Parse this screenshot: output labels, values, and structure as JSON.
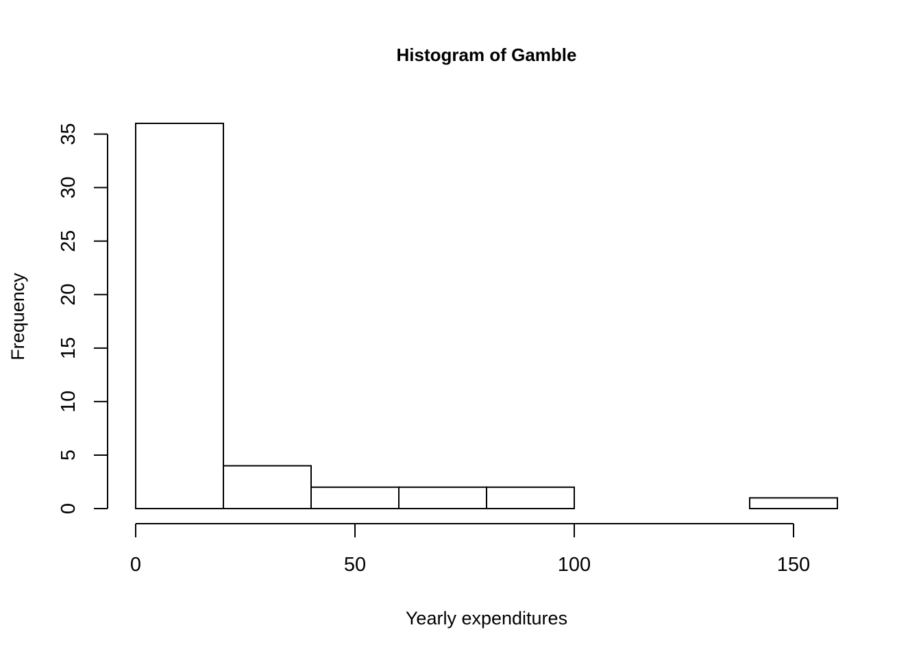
{
  "chart_data": {
    "type": "bar",
    "subtype": "histogram",
    "title": "Histogram of Gamble",
    "xlabel": "Yearly expenditures",
    "ylabel": "Frequency",
    "bins": [
      {
        "start": 0,
        "end": 20,
        "count": 36
      },
      {
        "start": 20,
        "end": 40,
        "count": 4
      },
      {
        "start": 40,
        "end": 60,
        "count": 2
      },
      {
        "start": 60,
        "end": 80,
        "count": 2
      },
      {
        "start": 80,
        "end": 100,
        "count": 2
      },
      {
        "start": 100,
        "end": 120,
        "count": 0
      },
      {
        "start": 120,
        "end": 140,
        "count": 0
      },
      {
        "start": 140,
        "end": 160,
        "count": 1
      }
    ],
    "xlim": [
      0,
      160
    ],
    "ylim": [
      0,
      36
    ],
    "x_ticks": [
      "0",
      "50",
      "100",
      "150"
    ],
    "y_ticks": [
      "0",
      "5",
      "10",
      "15",
      "20",
      "25",
      "30",
      "35"
    ],
    "grid": false,
    "bar_fill": "#ffffff",
    "bar_stroke": "#000000"
  }
}
